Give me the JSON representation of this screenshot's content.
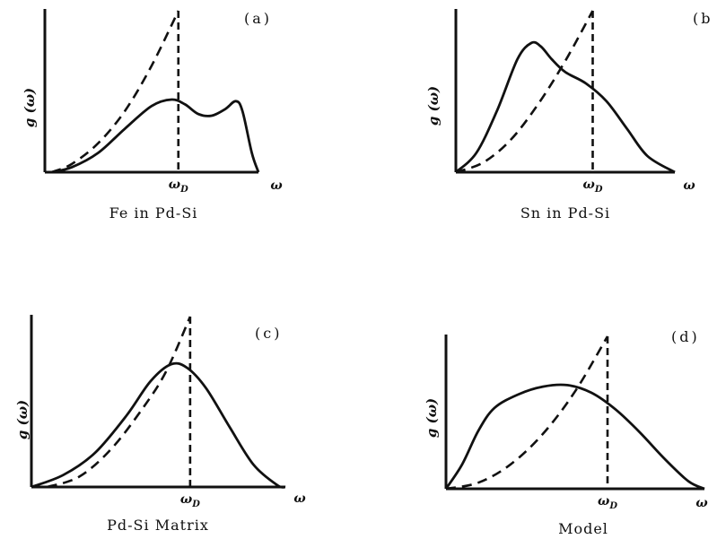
{
  "chart_data": [
    {
      "type": "line",
      "panel_label": "(a)",
      "caption": "Fe in Pd-Si",
      "ylabel": "g (ω)",
      "xlabel": "ω",
      "marker": {
        "symbol": "ω",
        "subscript": "D"
      },
      "xlim": [
        0,
        1.6
      ],
      "ylim": [
        0,
        1.0
      ],
      "omega_D": 1.0,
      "series": [
        {
          "style": "dashed",
          "x": [
            0.05,
            0.2,
            0.4,
            0.6,
            0.8,
            1.0
          ],
          "y": [
            0.0,
            0.05,
            0.18,
            0.38,
            0.66,
            1.0
          ]
        },
        {
          "style": "solid",
          "x": [
            0.05,
            0.2,
            0.4,
            0.6,
            0.8,
            0.95,
            1.05,
            1.15,
            1.25,
            1.35,
            1.43,
            1.48,
            1.55,
            1.6
          ],
          "y": [
            0.0,
            0.03,
            0.12,
            0.27,
            0.41,
            0.45,
            0.42,
            0.36,
            0.35,
            0.39,
            0.44,
            0.38,
            0.12,
            0.0
          ]
        }
      ]
    },
    {
      "type": "line",
      "panel_label": "(b",
      "caption": "Sn in Pd-Si",
      "ylabel": "g (ω)",
      "xlabel": "ω",
      "marker": {
        "symbol": "ω",
        "subscript": "D"
      },
      "xlim": [
        0,
        1.6
      ],
      "ylim": [
        0,
        1.0
      ],
      "omega_D": 1.0,
      "series": [
        {
          "style": "dashed",
          "x": [
            0.0,
            0.2,
            0.4,
            0.6,
            0.8,
            1.0
          ],
          "y": [
            0.0,
            0.06,
            0.2,
            0.42,
            0.69,
            1.0
          ]
        },
        {
          "style": "solid",
          "x": [
            0.0,
            0.15,
            0.3,
            0.45,
            0.55,
            0.62,
            0.7,
            0.8,
            0.95,
            1.1,
            1.25,
            1.4,
            1.6
          ],
          "y": [
            0.0,
            0.12,
            0.38,
            0.7,
            0.8,
            0.78,
            0.7,
            0.62,
            0.55,
            0.44,
            0.27,
            0.1,
            0.0
          ]
        }
      ]
    },
    {
      "type": "line",
      "panel_label": "(c)",
      "caption": "Pd-Si Matrix",
      "ylabel": "g (ω)",
      "xlabel": "ω",
      "marker": {
        "symbol": "ω",
        "subscript": "D"
      },
      "xlim": [
        0,
        1.6
      ],
      "ylim": [
        0,
        1.0
      ],
      "omega_D": 1.0,
      "series": [
        {
          "style": "dashed",
          "x": [
            0.1,
            0.3,
            0.5,
            0.7,
            0.85,
            1.0
          ],
          "y": [
            0.0,
            0.06,
            0.22,
            0.46,
            0.68,
            1.0
          ]
        },
        {
          "style": "solid",
          "x": [
            0.0,
            0.2,
            0.4,
            0.6,
            0.75,
            0.88,
            0.98,
            1.1,
            1.25,
            1.4,
            1.55,
            1.6
          ],
          "y": [
            0.0,
            0.07,
            0.2,
            0.42,
            0.62,
            0.72,
            0.7,
            0.58,
            0.35,
            0.13,
            0.01,
            0.0
          ]
        }
      ]
    },
    {
      "type": "line",
      "panel_label": "(d)",
      "caption": "Model",
      "ylabel": "g (ω)",
      "xlabel": "ω",
      "marker": {
        "symbol": "ω",
        "subscript": "D"
      },
      "xlim": [
        0,
        1.6
      ],
      "ylim": [
        0,
        1.0
      ],
      "omega_D": 1.0,
      "series": [
        {
          "style": "dashed",
          "x": [
            0.0,
            0.2,
            0.4,
            0.6,
            0.8,
            1.0
          ],
          "y": [
            0.0,
            0.04,
            0.16,
            0.36,
            0.64,
            1.0
          ]
        },
        {
          "style": "solid",
          "x": [
            0.0,
            0.1,
            0.2,
            0.3,
            0.45,
            0.6,
            0.75,
            0.9,
            1.05,
            1.2,
            1.35,
            1.5,
            1.6
          ],
          "y": [
            0.0,
            0.16,
            0.38,
            0.53,
            0.62,
            0.67,
            0.68,
            0.63,
            0.52,
            0.37,
            0.2,
            0.05,
            0.0
          ]
        }
      ]
    }
  ]
}
